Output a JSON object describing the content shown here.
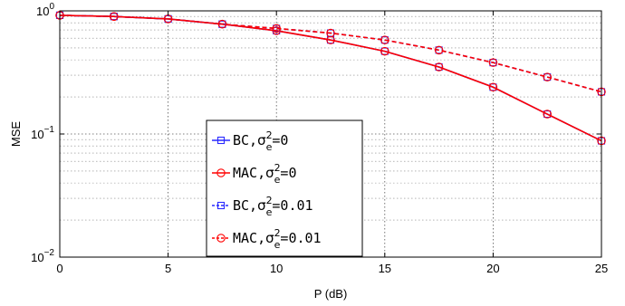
{
  "chart_data": {
    "type": "line",
    "xlabel": "P (dB)",
    "ylabel": "MSE",
    "xlim": [
      0,
      25
    ],
    "ylim": [
      0.01,
      1
    ],
    "yscale": "log",
    "grid": true,
    "legend_placement": "center-left",
    "x": [
      0,
      2.5,
      5,
      7.5,
      10,
      12.5,
      15,
      17.5,
      20,
      22.5,
      25
    ],
    "x_ticks": [
      "0",
      "5",
      "10",
      "15",
      "20",
      "25"
    ],
    "y_ticks": [
      {
        "base": "10",
        "exp": "0",
        "value": 1
      },
      {
        "base": "10",
        "exp": "−1",
        "value": 0.1
      },
      {
        "base": "10",
        "exp": "−2",
        "value": 0.01
      }
    ],
    "series": [
      {
        "name": "BC, σe2=0",
        "legend": {
          "prefix": "BC,",
          "sym": "σ",
          "sub": "e",
          "sup": "2",
          "rest": "=0"
        },
        "marker": "square",
        "color": "#2a2aff",
        "dash": "solid",
        "values": [
          0.92,
          0.9,
          0.86,
          0.78,
          0.69,
          0.58,
          0.47,
          0.35,
          0.24,
          0.145,
          0.088
        ]
      },
      {
        "name": "MAC, σe2=0",
        "legend": {
          "prefix": "MAC,",
          "sym": "σ",
          "sub": "e",
          "sup": "2",
          "rest": "=0"
        },
        "marker": "circle",
        "color": "#ff0000",
        "dash": "solid",
        "values": [
          0.92,
          0.9,
          0.86,
          0.78,
          0.69,
          0.58,
          0.47,
          0.35,
          0.24,
          0.145,
          0.088
        ]
      },
      {
        "name": "BC, σe2=0.01",
        "legend": {
          "prefix": "BC,",
          "sym": "σ",
          "sub": "e",
          "sup": "2",
          "rest": "=0.01"
        },
        "marker": "square",
        "color": "#2a2aff",
        "dash": "dashed",
        "values": [
          0.92,
          0.9,
          0.86,
          0.78,
          0.72,
          0.66,
          0.58,
          0.48,
          0.38,
          0.29,
          0.22
        ]
      },
      {
        "name": "MAC, σe2=0.01",
        "legend": {
          "prefix": "MAC,",
          "sym": "σ",
          "sub": "e",
          "sup": "2",
          "rest": "=0.01"
        },
        "marker": "circle",
        "color": "#ff0000",
        "dash": "dashed",
        "values": [
          0.92,
          0.9,
          0.86,
          0.78,
          0.72,
          0.66,
          0.58,
          0.48,
          0.38,
          0.29,
          0.22
        ]
      }
    ]
  }
}
